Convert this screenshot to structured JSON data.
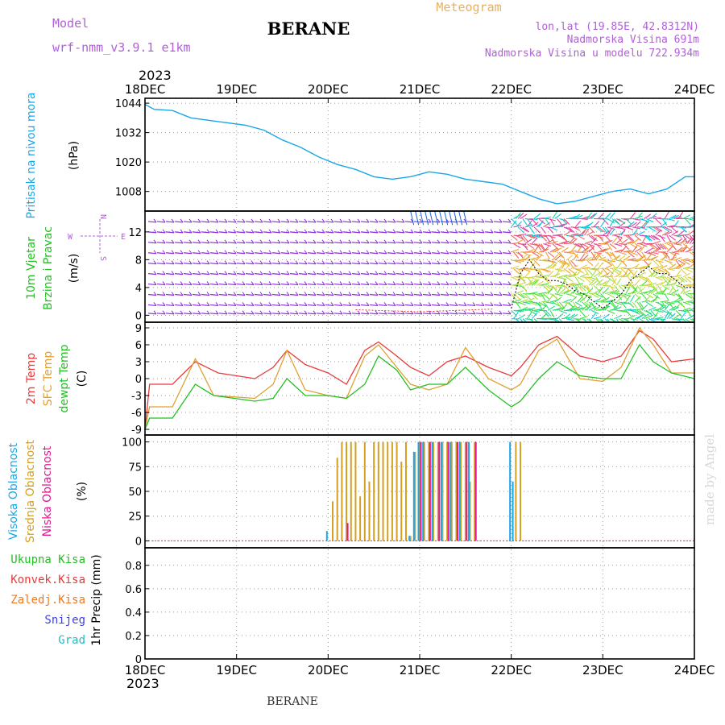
{
  "header": {
    "model_label": "Model",
    "model_name": "wrf-nmm_v3.9.1 e1km",
    "station": "BERANE",
    "meteogram_label": "Meteogram",
    "coords": "lon,lat (19.85E, 42.8312N)",
    "altitude": "Nadmorska Visina 691m",
    "model_altitude": "Nadmorska Visina u modelu 722.934m",
    "year_top": "2023",
    "year_bottom": "2023",
    "footer_station": "BERANE",
    "watermark": "made by Angel"
  },
  "x_axis": {
    "ticks": [
      "18DEC",
      "19DEC",
      "20DEC",
      "21DEC",
      "22DEC",
      "23DEC",
      "24DEC"
    ]
  },
  "panels": {
    "pressure": {
      "labels": [
        "Pritisak na nivou mora",
        "(hPa)"
      ],
      "yticks": [
        1044,
        1032,
        1020,
        1008
      ]
    },
    "wind": {
      "labels": [
        "10m Vjetar",
        "Brzina i Pravac",
        "(m/s)"
      ],
      "compass": {
        "n": "N",
        "s": "S",
        "e": "E",
        "w": "W"
      },
      "yticks": [
        0,
        4,
        8,
        12
      ]
    },
    "temp": {
      "labels": [
        "2m Temp",
        "SFC Temp",
        "dewpt Temp",
        "(C)"
      ],
      "yticks": [
        9,
        6,
        3,
        0,
        -3,
        -6,
        -9
      ]
    },
    "cloud": {
      "labels": [
        "Visoka Oblacnost",
        "Srednja Oblacnost",
        "Niska Oblacnost",
        "(%)"
      ],
      "yticks": [
        100,
        75,
        50,
        25,
        0
      ]
    },
    "precip": {
      "legend": [
        "Ukupna Kisa",
        "Konvek.Kisa",
        "Zaledj.Kisa",
        "Snijeg",
        "Grad"
      ],
      "ylabel": "1hr Precip (mm)",
      "yticks": [
        "0",
        "0.2",
        "0.4",
        "0.6",
        "0.8"
      ]
    }
  },
  "colors": {
    "pressure": "#1aa7e8",
    "temp2m": "#e83a3a",
    "sfc": "#e0a030",
    "dew": "#22c022",
    "high_cloud": "#1aa7e8",
    "mid_cloud": "#d4a020",
    "low_cloud": "#e01890",
    "wind_calm": "#8a2be2"
  },
  "chart_data": [
    {
      "type": "line",
      "ylabel": "(hPa)",
      "ylim": [
        1000,
        1046
      ],
      "x_range_days": [
        18,
        24
      ],
      "series": [
        {
          "name": "Pritisak na nivou mora",
          "x": [
            18.0,
            18.1,
            18.3,
            18.5,
            18.7,
            18.9,
            19.1,
            19.3,
            19.5,
            19.7,
            19.9,
            20.1,
            20.3,
            20.5,
            20.7,
            20.9,
            21.1,
            21.3,
            21.5,
            21.7,
            21.9,
            22.1,
            22.3,
            22.5,
            22.7,
            22.9,
            23.1,
            23.3,
            23.5,
            23.7,
            23.9,
            24.0
          ],
          "y": [
            1043.5,
            1041.5,
            1041,
            1038,
            1037,
            1036,
            1035,
            1033,
            1029,
            1026,
            1022,
            1019,
            1017,
            1014,
            1013,
            1014,
            1016,
            1015,
            1013,
            1012,
            1011,
            1008,
            1005,
            1003,
            1004,
            1006,
            1008,
            1009,
            1007,
            1009,
            1014,
            1014
          ]
        }
      ]
    },
    {
      "type": "line",
      "ylabel": "(C)",
      "ylim": [
        -10,
        10
      ],
      "x_range_days": [
        18,
        24
      ],
      "series": [
        {
          "name": "2m Temp",
          "x": [
            18.0,
            18.05,
            18.3,
            18.55,
            18.8,
            19.2,
            19.4,
            19.55,
            19.75,
            20.0,
            20.2,
            20.4,
            20.55,
            20.75,
            20.9,
            21.1,
            21.3,
            21.5,
            21.75,
            22.0,
            22.1,
            22.3,
            22.5,
            22.75,
            23.0,
            23.2,
            23.4,
            23.55,
            23.75,
            24.0
          ],
          "y": [
            -9,
            -1,
            -1,
            3,
            1,
            0,
            2,
            5,
            2.5,
            1,
            -1,
            5,
            6.5,
            4,
            2,
            0.5,
            3,
            4,
            2,
            0.5,
            2,
            6,
            7.5,
            4,
            3,
            4,
            8.5,
            7,
            3,
            3.5
          ]
        },
        {
          "name": "SFC Temp",
          "x": [
            18.0,
            18.05,
            18.3,
            18.55,
            18.75,
            19.2,
            19.4,
            19.55,
            19.75,
            20.0,
            20.2,
            20.4,
            20.55,
            20.75,
            20.9,
            21.1,
            21.3,
            21.5,
            21.75,
            22.0,
            22.1,
            22.3,
            22.5,
            22.75,
            23.0,
            23.2,
            23.4,
            23.55,
            23.75,
            24.0
          ],
          "y": [
            -9,
            -5,
            -5,
            3.5,
            -3,
            -3.5,
            -1,
            5,
            -2,
            -3,
            -3.5,
            4,
            6,
            2,
            -1,
            -2,
            -1,
            5.5,
            0,
            -2,
            -1,
            5,
            7,
            0,
            -0.5,
            2,
            9,
            6,
            1,
            1
          ]
        },
        {
          "name": "dewpt Temp",
          "x": [
            18.0,
            18.05,
            18.3,
            18.55,
            18.75,
            19.2,
            19.4,
            19.55,
            19.75,
            20.0,
            20.2,
            20.4,
            20.55,
            20.75,
            20.9,
            21.1,
            21.3,
            21.5,
            21.75,
            22.0,
            22.1,
            22.3,
            22.5,
            22.75,
            23.0,
            23.2,
            23.4,
            23.55,
            23.75,
            24.0
          ],
          "y": [
            -9,
            -7,
            -7,
            -1,
            -3,
            -4,
            -3.5,
            0,
            -3,
            -3,
            -3.5,
            -1,
            4,
            1.5,
            -2,
            -1,
            -1,
            2,
            -2,
            -5,
            -4,
            0,
            3,
            0.5,
            0,
            0,
            6,
            3,
            1,
            0
          ]
        }
      ]
    },
    {
      "type": "bar",
      "ylabel": "(%)",
      "ylim": [
        0,
        100
      ],
      "x_range_days": [
        18,
        24
      ],
      "series": [
        {
          "name": "Srednja Oblacnost",
          "x": [
            20.05,
            20.1,
            20.15,
            20.2,
            20.25,
            20.3,
            20.35,
            20.4,
            20.45,
            20.5,
            20.55,
            20.6,
            20.65,
            20.7,
            20.75,
            20.8,
            20.85,
            20.9,
            20.95,
            21.0,
            21.05,
            21.1,
            21.15,
            21.2,
            21.25,
            21.3,
            21.35,
            21.4,
            21.45,
            21.5,
            21.55,
            21.6,
            22.05,
            22.1
          ],
          "y": [
            40,
            84,
            100,
            100,
            100,
            100,
            45,
            100,
            60,
            100,
            100,
            100,
            100,
            100,
            100,
            80,
            100,
            5,
            90,
            100,
            100,
            100,
            100,
            100,
            100,
            100,
            100,
            100,
            100,
            100,
            60,
            100,
            100,
            100
          ]
        },
        {
          "name": "Visoka Oblacnost",
          "x": [
            20.0,
            20.9,
            20.95,
            21.0,
            21.05,
            21.15,
            21.25,
            21.35,
            21.45,
            21.55,
            22.0,
            22.03
          ],
          "y": [
            10,
            5,
            90,
            100,
            100,
            100,
            100,
            100,
            100,
            100,
            100,
            60
          ]
        },
        {
          "name": "Niska Oblacnost",
          "x": [
            20.2,
            21.0,
            21.1,
            21.2,
            21.3,
            21.4,
            21.5,
            21.6
          ],
          "y": [
            18,
            100,
            100,
            100,
            100,
            100,
            100,
            100
          ]
        }
      ]
    },
    {
      "type": "bar",
      "ylabel": "1hr Precip (mm)",
      "ylim": [
        0,
        0.95
      ],
      "x_range_days": [
        18,
        24
      ],
      "series": [
        {
          "name": "Ukupna Kisa",
          "x": [],
          "y": []
        },
        {
          "name": "Konvek.Kisa",
          "x": [],
          "y": []
        },
        {
          "name": "Zaledj.Kisa",
          "x": [],
          "y": []
        },
        {
          "name": "Snijeg",
          "x": [],
          "y": []
        },
        {
          "name": "Grad",
          "x": [],
          "y": []
        }
      ]
    },
    {
      "type": "scatter",
      "ylabel": "(m/s)",
      "ylim": [
        -1,
        15
      ],
      "x_range_days": [
        18,
        24
      ],
      "series": [
        {
          "name": "wind speed",
          "x": [
            22.0,
            22.1,
            22.2,
            22.3,
            22.4,
            22.5,
            22.6,
            22.7,
            22.8,
            22.9,
            23.0,
            23.1,
            23.2,
            23.3,
            23.4,
            23.5,
            23.6,
            23.7,
            23.8,
            23.9,
            24.0
          ],
          "y": [
            1,
            6,
            8,
            6,
            5,
            5,
            4.5,
            3.5,
            3,
            2,
            1,
            2,
            3,
            5,
            6,
            7,
            6,
            6,
            5,
            4,
            4
          ]
        }
      ]
    }
  ]
}
